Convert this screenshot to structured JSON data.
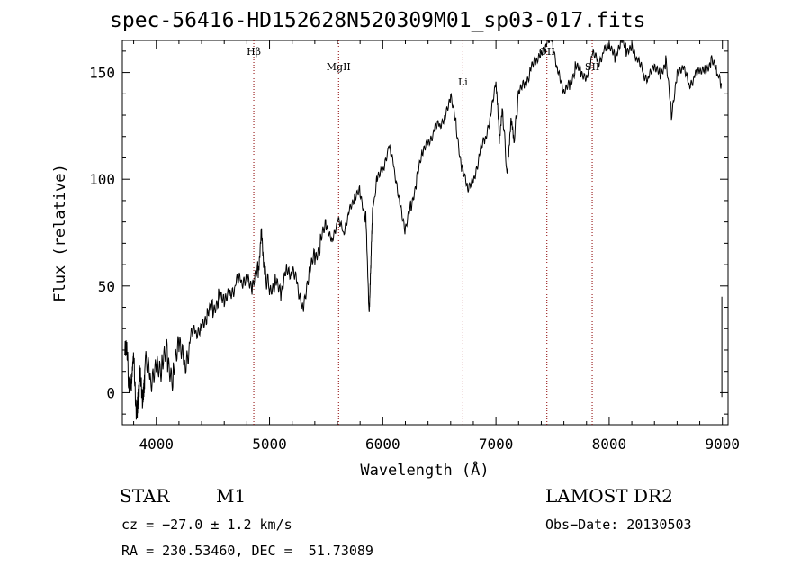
{
  "title": "spec-56416-HD152628N520309M01_sp03-017.fits",
  "footer": {
    "object_type": "STAR",
    "subclass": "M1",
    "survey": "LAMOST DR2",
    "cz": "cz = −27.0 ± 1.2 km/s",
    "obs_date": "Obs−Date: 20130503",
    "radec": "RA = 230.53460, DEC =  51.73089"
  },
  "chart_data": {
    "type": "line",
    "title": "spec-56416-HD152628N520309M01_sp03-017.fits",
    "xlabel": "Wavelength (Å)",
    "ylabel": "Flux (relative)",
    "xlim": [
      3700,
      9050
    ],
    "ylim": [
      -15,
      165
    ],
    "xticks": [
      4000,
      5000,
      6000,
      7000,
      8000,
      9000
    ],
    "yticks": [
      0,
      50,
      100,
      150
    ],
    "grid": false,
    "line_color": "#000000",
    "marker_color": "#8b0000",
    "lines": [
      {
        "label": "Hβ",
        "x": 4861
      },
      {
        "label": "MgII",
        "x": 5610
      },
      {
        "label": "Li",
        "x": 6708
      },
      {
        "label": "OII",
        "x": 7450
      },
      {
        "label": "SII",
        "x": 7850
      }
    ],
    "series": [
      {
        "x": [
          3720,
          3750,
          3780,
          3800,
          3830,
          3850,
          3880,
          3900,
          3950,
          4000,
          4050,
          4100,
          4150,
          4200,
          4250,
          4300,
          4350,
          4400,
          4450,
          4500,
          4550,
          4600,
          4650,
          4700,
          4750,
          4800,
          4850,
          4900,
          4930,
          4960,
          5000,
          5050,
          5100,
          5150,
          5200,
          5250,
          5300,
          5350,
          5400,
          5450,
          5500,
          5550,
          5600,
          5650,
          5700,
          5750,
          5800,
          5850,
          5880,
          5895,
          5910,
          5950,
          6000,
          6050,
          6100,
          6150,
          6200,
          6250,
          6300,
          6350,
          6400,
          6450,
          6500,
          6550,
          6600,
          6650,
          6700,
          6750,
          6800,
          6850,
          6900,
          6950,
          7000,
          7030,
          7060,
          7100,
          7130,
          7160,
          7200,
          7250,
          7300,
          7350,
          7400,
          7450,
          7500,
          7550,
          7600,
          7650,
          7700,
          7750,
          7800,
          7850,
          7900,
          7950,
          8000,
          8050,
          8100,
          8150,
          8200,
          8250,
          8300,
          8350,
          8400,
          8450,
          8500,
          8550,
          8600,
          8650,
          8700,
          8750,
          8800,
          8850,
          8900,
          8950,
          8990
        ],
        "y": [
          25,
          10,
          0,
          15,
          -12,
          5,
          0,
          12,
          5,
          15,
          10,
          18,
          8,
          22,
          15,
          25,
          28,
          32,
          35,
          40,
          45,
          42,
          48,
          50,
          52,
          55,
          48,
          58,
          75,
          55,
          50,
          52,
          45,
          60,
          55,
          50,
          40,
          55,
          65,
          70,
          78,
          72,
          80,
          75,
          85,
          90,
          95,
          82,
          38,
          60,
          85,
          100,
          105,
          115,
          105,
          90,
          75,
          88,
          100,
          112,
          118,
          122,
          125,
          130,
          138,
          125,
          105,
          95,
          100,
          110,
          118,
          130,
          145,
          120,
          132,
          100,
          128,
          118,
          140,
          145,
          150,
          155,
          160,
          163,
          165,
          150,
          140,
          145,
          152,
          150,
          148,
          158,
          155,
          160,
          162,
          158,
          165,
          160,
          163,
          155,
          150,
          148,
          152,
          150,
          155,
          130,
          150,
          152,
          145,
          148,
          150,
          152,
          155,
          150,
          145
        ]
      }
    ]
  }
}
